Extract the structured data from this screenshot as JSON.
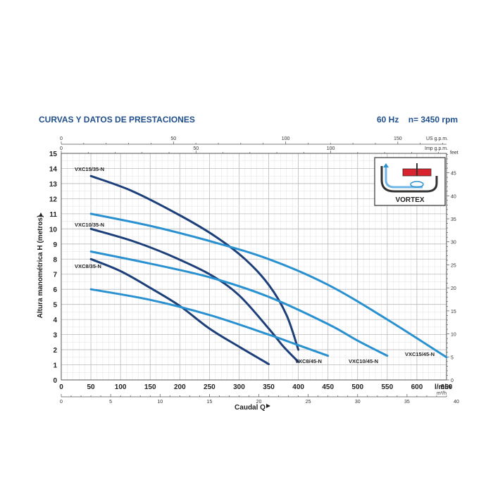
{
  "header": {
    "title": "CURVAS Y DATOS DE PRESTACIONES",
    "frequency": "60 Hz",
    "speed": "n= 3450 rpm"
  },
  "chart_data": {
    "type": "line",
    "title": "CURVAS Y DATOS DE PRESTACIONES",
    "xlabel": "Caudal Q",
    "ylabel": "Altura manométrica H (metros)",
    "x_unit": "l/min",
    "xlim": [
      0,
      650
    ],
    "ylim": [
      0,
      15
    ],
    "x_ticks": [
      0,
      50,
      100,
      150,
      200,
      250,
      300,
      350,
      400,
      450,
      500,
      550,
      600,
      650
    ],
    "y_ticks": [
      0,
      1,
      2,
      3,
      4,
      5,
      6,
      7,
      8,
      9,
      10,
      11,
      12,
      13,
      14,
      15
    ],
    "grid": true,
    "secondary_axes": {
      "top_us": {
        "unit": "US g.p.m.",
        "ticks": [
          0,
          50,
          100,
          150
        ]
      },
      "top_imp": {
        "unit": "Imp g.p.m.",
        "ticks": [
          0,
          50,
          100
        ]
      },
      "bottom_m3h": {
        "unit": "m³/h",
        "ticks": [
          0,
          5,
          10,
          15,
          20,
          25,
          30,
          35,
          40
        ]
      },
      "right_feet": {
        "unit": "feet",
        "ticks": [
          0,
          5,
          10,
          15,
          20,
          25,
          30,
          35,
          40,
          45
        ]
      }
    },
    "series": [
      {
        "name": "VXC15/35-N",
        "color": "#1d3f7a",
        "points": [
          [
            50,
            13.5
          ],
          [
            120,
            12.5
          ],
          [
            200,
            10.9
          ],
          [
            260,
            9.5
          ],
          [
            310,
            8.0
          ],
          [
            350,
            6.3
          ],
          [
            380,
            4.3
          ],
          [
            400,
            2.0
          ]
        ]
      },
      {
        "name": "VXC10/35-N",
        "color": "#1d3f7a",
        "points": [
          [
            50,
            10.0
          ],
          [
            120,
            9.2
          ],
          [
            180,
            8.3
          ],
          [
            250,
            7.0
          ],
          [
            300,
            5.6
          ],
          [
            350,
            3.4
          ],
          [
            375,
            2.2
          ],
          [
            400,
            1.2
          ]
        ],
        "plot_end": [
          400,
          1.2
        ]
      },
      {
        "name": "VXC8/35-N",
        "color": "#1d3f7a",
        "points": [
          [
            50,
            8.0
          ],
          [
            100,
            7.2
          ],
          [
            150,
            6.1
          ],
          [
            200,
            4.9
          ],
          [
            250,
            3.4
          ],
          [
            300,
            2.2
          ],
          [
            350,
            1.05
          ]
        ]
      },
      {
        "name": "VXC15/45-N",
        "color": "#2a91d0",
        "points": [
          [
            50,
            11.0
          ],
          [
            150,
            10.2
          ],
          [
            250,
            9.2
          ],
          [
            350,
            8.0
          ],
          [
            450,
            6.3
          ],
          [
            550,
            4.0
          ],
          [
            650,
            1.5
          ]
        ]
      },
      {
        "name": "VXC10/45-N",
        "color": "#2a91d0",
        "points": [
          [
            50,
            8.5
          ],
          [
            150,
            7.7
          ],
          [
            250,
            6.8
          ],
          [
            350,
            5.5
          ],
          [
            450,
            3.7
          ],
          [
            500,
            2.6
          ],
          [
            550,
            1.6
          ]
        ]
      },
      {
        "name": "VXC8/45-N",
        "color": "#2a91d0",
        "points": [
          [
            50,
            6.0
          ],
          [
            150,
            5.3
          ],
          [
            250,
            4.3
          ],
          [
            350,
            3.0
          ],
          [
            400,
            2.3
          ],
          [
            450,
            1.6
          ]
        ]
      }
    ],
    "inset": {
      "label": "VORTEX"
    }
  }
}
